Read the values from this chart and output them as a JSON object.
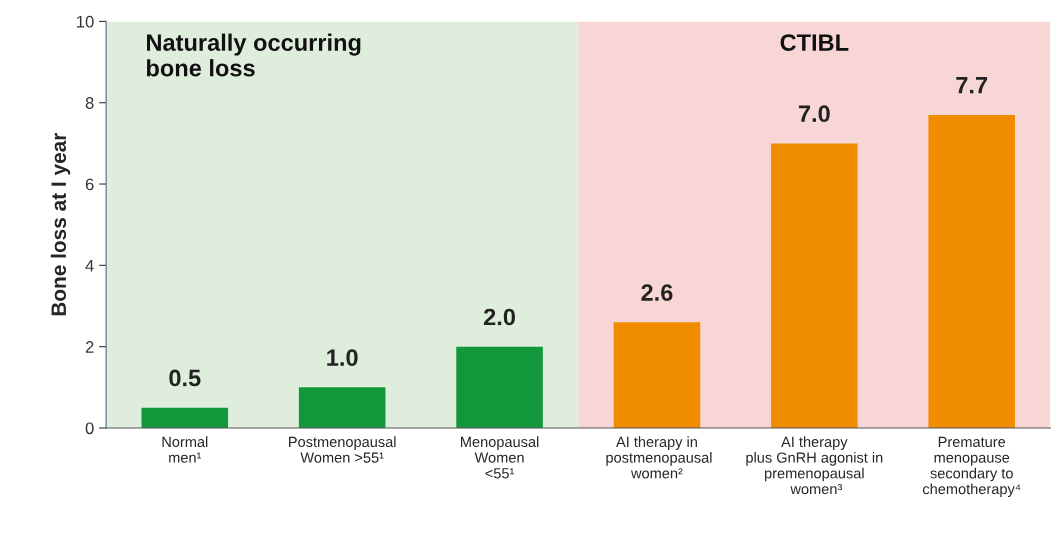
{
  "chart_data": {
    "type": "bar",
    "ylabel": "Bone loss at I year",
    "categories": [
      "Normal\nmen¹",
      "Postmenopausal\nWomen >55¹",
      "Menopausal\nWomen\n<55¹",
      "AI therapy in\n postmenopausal\nwomen²",
      "AI therapy\nplus GnRH agonist in\npremenopausal\n women³",
      "Premature\nmenopause\nsecondary to\nchemotherapy⁴"
    ],
    "values": [
      0.5,
      1.0,
      2.0,
      2.6,
      7.0,
      7.7
    ],
    "value_labels": [
      "0.5",
      "1.0",
      "2.0",
      "2.6",
      "7.0",
      "7.7"
    ],
    "colors": [
      "#12973a",
      "#12973a",
      "#12973a",
      "#f08c00",
      "#f08c00",
      "#f08c00"
    ],
    "ylim": [
      0,
      10
    ],
    "yticks": [
      0,
      2,
      4,
      6,
      8,
      10
    ],
    "grid": false,
    "bands": [
      {
        "axis": "x",
        "from": "Normal\nmen¹",
        "to": "Menopausal\nWomen\n<55¹",
        "label": "Naturally occurring\nbone loss",
        "color": "#dfeddc"
      },
      {
        "axis": "x",
        "from": "AI therapy in\n postmenopausal\nwomen²",
        "to": "Premature\nmenopause\nsecondary to\nchemotherapy⁴",
        "label": "CTIBL",
        "color": "#f9d6d6"
      }
    ]
  }
}
